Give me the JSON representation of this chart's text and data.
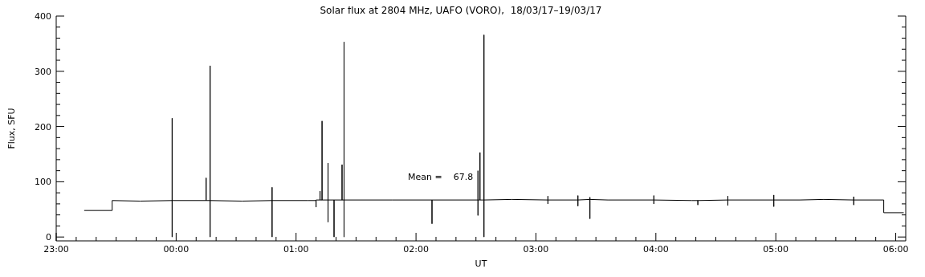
{
  "chart_data": {
    "type": "line",
    "title": "Solar flux at 2804 MHz, UAFO (VORO),  18/03/17–19/03/17",
    "xlabel": "UT",
    "ylabel": "Flux, SFU",
    "annotations": [
      "Mean =    67.8"
    ],
    "xlim": [
      "--03-18T23:00",
      "--03-19T06:05"
    ],
    "ylim": [
      -7,
      400
    ],
    "xticks": [
      {
        "value": "--03-18T23:00",
        "label": "23:00"
      },
      {
        "value": "--03-18T23:10",
        "label": null
      },
      {
        "value": "--03-18T23:20",
        "label": null
      },
      {
        "value": "--03-18T23:30",
        "label": null
      },
      {
        "value": "--03-18T23:40",
        "label": null
      },
      {
        "value": "--03-18T23:50",
        "label": null
      },
      {
        "value": "--03-19T00:00",
        "label": "00:00"
      },
      {
        "value": "--03-19T00:10",
        "label": null
      },
      {
        "value": "--03-19T00:20",
        "label": null
      },
      {
        "value": "--03-19T00:30",
        "label": null
      },
      {
        "value": "--03-19T00:40",
        "label": null
      },
      {
        "value": "--03-19T00:50",
        "label": null
      },
      {
        "value": "--03-19T01:00",
        "label": "01:00"
      },
      {
        "value": "--03-19T01:10",
        "label": null
      },
      {
        "value": "--03-19T01:20",
        "label": null
      },
      {
        "value": "--03-19T01:30",
        "label": null
      },
      {
        "value": "--03-19T01:40",
        "label": null
      },
      {
        "value": "--03-19T01:50",
        "label": null
      },
      {
        "value": "--03-19T02:00",
        "label": "02:00"
      },
      {
        "value": "--03-19T02:10",
        "label": null
      },
      {
        "value": "--03-19T02:20",
        "label": null
      },
      {
        "value": "--03-19T02:30",
        "label": null
      },
      {
        "value": "--03-19T02:40",
        "label": null
      },
      {
        "value": "--03-19T02:50",
        "label": null
      },
      {
        "value": "--03-19T03:00",
        "label": "03:00"
      },
      {
        "value": "--03-19T03:10",
        "label": null
      },
      {
        "value": "--03-19T03:20",
        "label": null
      },
      {
        "value": "--03-19T03:30",
        "label": null
      },
      {
        "value": "--03-19T03:40",
        "label": null
      },
      {
        "value": "--03-19T03:50",
        "label": null
      },
      {
        "value": "--03-19T04:00",
        "label": "04:00"
      },
      {
        "value": "--03-19T04:10",
        "label": null
      },
      {
        "value": "--03-19T04:20",
        "label": null
      },
      {
        "value": "--03-19T04:30",
        "label": null
      },
      {
        "value": "--03-19T04:40",
        "label": null
      },
      {
        "value": "--03-19T04:50",
        "label": null
      },
      {
        "value": "--03-19T05:00",
        "label": "05:00"
      },
      {
        "value": "--03-19T05:10",
        "label": null
      },
      {
        "value": "--03-19T05:20",
        "label": null
      },
      {
        "value": "--03-19T05:30",
        "label": null
      },
      {
        "value": "--03-19T05:40",
        "label": null
      },
      {
        "value": "--03-19T05:50",
        "label": null
      },
      {
        "value": "--03-19T06:00",
        "label": "06:00"
      }
    ],
    "yticks": [
      0,
      {
        "value": 20,
        "label": null
      },
      {
        "value": 40,
        "label": null
      },
      {
        "value": 60,
        "label": null
      },
      {
        "value": 80,
        "label": null
      },
      100,
      {
        "value": 120,
        "label": null
      },
      {
        "value": 140,
        "label": null
      },
      {
        "value": 160,
        "label": null
      },
      {
        "value": 180,
        "label": null
      },
      200,
      {
        "value": 220,
        "label": null
      },
      {
        "value": 240,
        "label": null
      },
      {
        "value": 260,
        "label": null
      },
      {
        "value": 280,
        "label": null
      },
      300,
      {
        "value": 320,
        "label": null
      },
      {
        "value": 340,
        "label": null
      },
      {
        "value": 360,
        "label": null
      },
      {
        "value": 380,
        "label": null
      },
      400
    ],
    "series": [
      {
        "color": "#000000",
        "x": [
          "--03-18T23:14",
          "--03-18T23:28",
          "--03-18T23:28",
          "--03-18T23:42",
          "--03-18T23:58",
          "--03-18T23:58",
          "--03-18T23:58",
          "--03-18T23:58",
          "--03-19T00:15",
          "--03-19T00:15",
          "--03-19T00:15",
          "--03-19T00:17",
          "--03-19T00:17",
          "--03-19T00:17",
          "--03-19T00:17",
          "--03-19T00:33",
          "--03-19T00:48",
          "--03-19T00:48",
          "--03-19T00:48",
          "--03-19T00:48",
          "--03-19T01:06",
          "--03-19T01:10",
          "--03-19T01:10",
          "--03-19T01:10",
          "--03-19T01:12",
          "--03-19T01:12",
          "--03-19T01:12",
          "--03-19T01:13",
          "--03-19T01:13",
          "--03-19T01:13",
          "--03-19T01:16",
          "--03-19T01:16",
          "--03-19T01:16",
          "--03-19T01:16",
          "--03-19T01:19",
          "--03-19T01:19",
          "--03-19T01:19",
          "--03-19T01:23",
          "--03-19T01:23",
          "--03-19T01:23",
          "--03-19T01:24",
          "--03-19T01:24",
          "--03-19T01:24",
          "--03-19T01:24",
          "--03-19T01:48",
          "--03-19T02:08",
          "--03-19T02:08",
          "--03-19T02:08",
          "--03-19T02:31",
          "--03-19T02:31",
          "--03-19T02:31",
          "--03-19T02:31",
          "--03-19T02:32",
          "--03-19T02:32",
          "--03-19T02:32",
          "--03-19T02:34",
          "--03-19T02:34",
          "--03-19T02:34",
          "--03-19T02:34",
          "--03-19T02:48",
          "--03-19T03:06",
          "--03-19T03:06",
          "--03-19T03:06",
          "--03-19T03:06",
          "--03-19T03:21",
          "--03-19T03:21",
          "--03-19T03:21",
          "--03-19T03:21",
          "--03-19T03:27",
          "--03-19T03:27",
          "--03-19T03:27",
          "--03-19T03:27",
          "--03-19T03:36",
          "--03-19T03:59",
          "--03-19T03:59",
          "--03-19T03:59",
          "--03-19T03:59",
          "--03-19T04:18",
          "--03-19T04:21",
          "--03-19T04:21",
          "--03-19T04:21",
          "--03-19T04:36",
          "--03-19T04:36",
          "--03-19T04:36",
          "--03-19T04:36",
          "--03-19T04:59",
          "--03-19T04:59",
          "--03-19T04:59",
          "--03-19T04:59",
          "--03-19T05:12",
          "--03-19T05:24",
          "--03-19T05:39",
          "--03-19T05:39",
          "--03-19T05:39",
          "--03-19T05:39",
          "--03-19T05:54",
          "--03-19T05:54",
          "--03-19T06:04"
        ],
        "values": [
          48,
          48,
          66,
          65,
          66,
          0,
          215,
          66,
          66,
          107,
          66,
          66,
          310,
          0,
          66,
          65,
          66,
          90,
          0,
          66,
          66,
          66,
          54,
          67,
          67,
          83,
          67,
          67,
          210,
          67,
          67,
          134,
          27,
          67,
          67,
          0,
          67,
          67,
          131,
          67,
          67,
          353,
          0,
          67,
          67,
          67,
          24,
          67,
          67,
          39,
          120,
          67,
          67,
          153,
          67,
          67,
          366,
          0,
          67,
          68,
          67,
          74,
          60,
          67,
          67,
          75,
          56,
          67,
          68,
          72,
          33,
          68,
          67,
          67,
          75,
          60,
          67,
          66,
          66,
          58,
          66,
          67,
          74,
          57,
          67,
          67,
          76,
          55,
          67,
          67,
          68,
          67,
          73,
          58,
          67,
          67,
          44,
          44
        ]
      }
    ]
  }
}
